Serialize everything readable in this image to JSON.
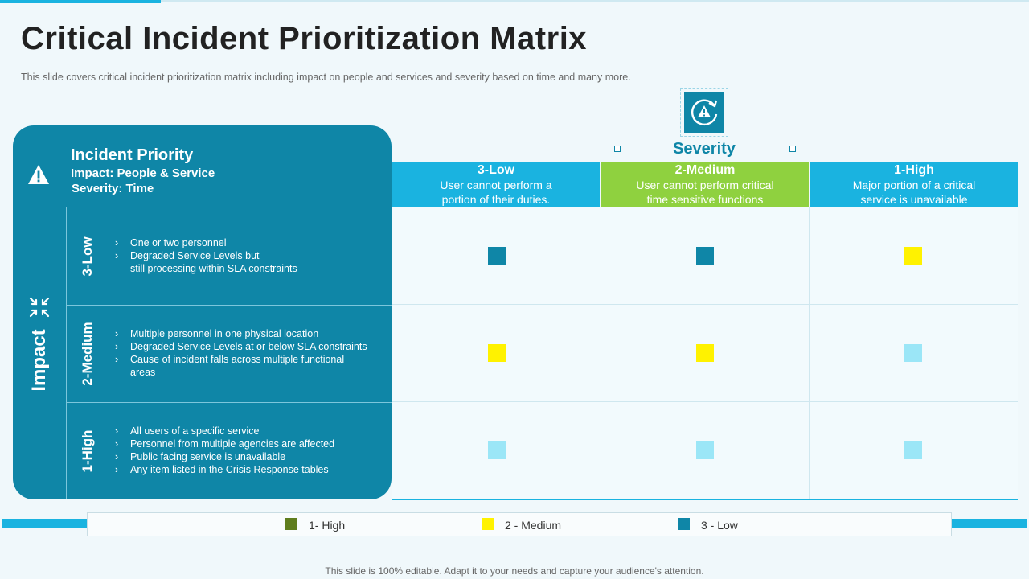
{
  "title": "Critical Incident Prioritization Matrix",
  "subtitle": "This slide covers critical incident prioritization matrix including impact on people and services and severity based on time and many more.",
  "colors": {
    "high": "#5f7d1d",
    "medium": "#fff200",
    "low": "#0f86a7",
    "light": "#9be6f7",
    "panel": "#0f86a7",
    "accent": "#1ab3e0",
    "medium_header": "#8fd13f"
  },
  "left_panel": {
    "title": "Incident Priority",
    "line1": "Impact: People & Service",
    "line2": "Severity: Time",
    "impact_label": "Impact",
    "icons": [
      "warning-icon",
      "arrows-inward-icon"
    ],
    "rows": [
      {
        "label": "3-Low",
        "bullets": [
          "One or two personnel",
          "Degraded Service Levels but",
          "still processing within SLA constraints"
        ]
      },
      {
        "label": "2-Medium",
        "bullets": [
          "Multiple personnel in one physical location",
          "Degraded Service Levels at or below SLA constraints",
          "Cause of incident falls across multiple functional",
          "areas"
        ]
      },
      {
        "label": "1-High",
        "bullets": [
          "All users of a specific service",
          "Personnel from multiple agencies are affected",
          "Public facing service is unavailable",
          "Any item listed in the Crisis Response tables"
        ]
      }
    ]
  },
  "severity": {
    "title": "Severity",
    "icon": "alert-refresh-icon",
    "columns": [
      {
        "label": "3-Low",
        "desc1": "User cannot perform a",
        "desc2": "portion of their duties.",
        "color": "#1ab3e0"
      },
      {
        "label": "2-Medium",
        "desc1": "User cannot perform critical",
        "desc2": "time sensitive functions",
        "color": "#8fd13f"
      },
      {
        "label": "1-High",
        "desc1": "Major portion of a critical",
        "desc2": "service is unavailable",
        "color": "#1ab3e0"
      }
    ]
  },
  "matrix": [
    [
      "low",
      "low",
      "medium"
    ],
    [
      "medium",
      "medium",
      "light"
    ],
    [
      "light",
      "light",
      "light"
    ]
  ],
  "legend": [
    {
      "label": "1- High",
      "color": "#5f7d1d"
    },
    {
      "label": "2 - Medium",
      "color": "#fff200"
    },
    {
      "label": "3 - Low",
      "color": "#0f86a7"
    }
  ],
  "footer": "This slide is 100% editable. Adapt it to your needs and capture your audience's attention."
}
